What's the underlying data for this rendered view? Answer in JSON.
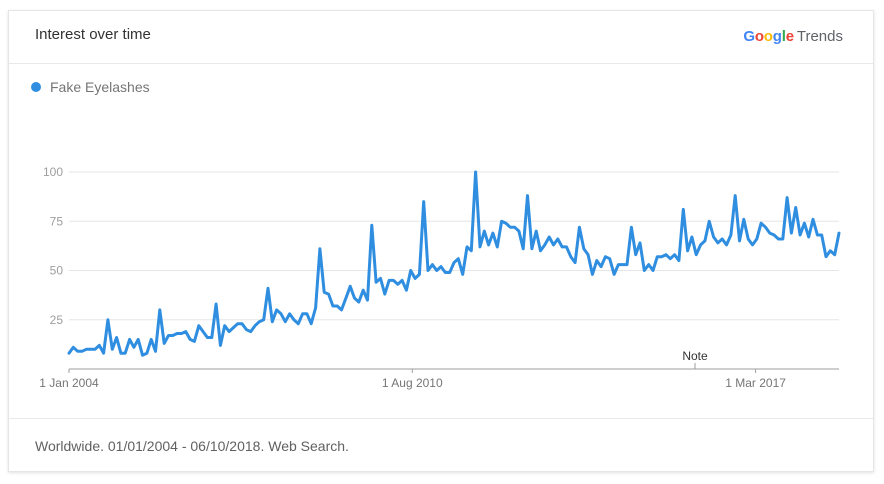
{
  "header": {
    "title": "Interest over time",
    "brand_google": "Google",
    "brand_trends": "Trends"
  },
  "legend": {
    "label": "Fake Eyelashes",
    "color": "#2f8ee0"
  },
  "footer": {
    "text": "Worldwide. 01/01/2004 - 06/10/2018. Web Search."
  },
  "note": {
    "label": "Note"
  },
  "chart_data": {
    "type": "line",
    "title": "Interest over time",
    "xlabel": "",
    "ylabel": "",
    "ylim": [
      0,
      100
    ],
    "yticks": [
      25,
      50,
      75,
      100
    ],
    "xticks": [
      {
        "label": "1 Jan 2004",
        "date": "2004-01-01"
      },
      {
        "label": "1 Aug 2010",
        "date": "2010-08-01"
      },
      {
        "label": "1 Mar 2017",
        "date": "2017-03-01"
      }
    ],
    "grid": true,
    "legend_position": "top-left",
    "x_range": [
      "2004-01-01",
      "2018-10-06"
    ],
    "series": [
      {
        "name": "Fake Eyelashes",
        "color": "#2f8ee0",
        "values": [
          8,
          11,
          9,
          9,
          10,
          10,
          10,
          12,
          8,
          25,
          10,
          16,
          8,
          8,
          15,
          11,
          15,
          7,
          8,
          15,
          9,
          30,
          13,
          17,
          17,
          18,
          18,
          19,
          15,
          14,
          22,
          19,
          16,
          16,
          33,
          12,
          22,
          19,
          21,
          23,
          23,
          20,
          19,
          22,
          24,
          25,
          41,
          24,
          30,
          28,
          24,
          28,
          25,
          23,
          28,
          28,
          23,
          31,
          61,
          39,
          38,
          32,
          32,
          30,
          36,
          42,
          36,
          34,
          40,
          35,
          73,
          44,
          46,
          38,
          45,
          45,
          43,
          45,
          40,
          50,
          46,
          48,
          85,
          50,
          53,
          50,
          52,
          49,
          49,
          54,
          56,
          48,
          62,
          60,
          100,
          62,
          70,
          63,
          69,
          62,
          75,
          74,
          72,
          72,
          70,
          61,
          88,
          61,
          70,
          60,
          63,
          67,
          63,
          66,
          62,
          62,
          57,
          54,
          72,
          61,
          58,
          48,
          55,
          52,
          57,
          56,
          48,
          53,
          53,
          53,
          72,
          58,
          64,
          50,
          53,
          50,
          57,
          57,
          58,
          56,
          58,
          55,
          81,
          60,
          67,
          58,
          63,
          65,
          75,
          67,
          64,
          66,
          63,
          68,
          88,
          65,
          76,
          66,
          63,
          66,
          74,
          72,
          69,
          68,
          66,
          66,
          87,
          69,
          82,
          68,
          74,
          67,
          76,
          68,
          68,
          57,
          60,
          58,
          69
        ]
      }
    ]
  }
}
